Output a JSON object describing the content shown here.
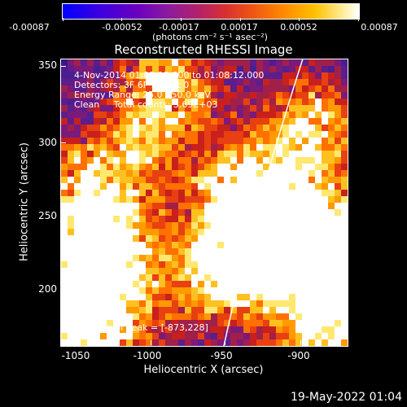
{
  "colorbar": {
    "ticks": [
      "-0.00087",
      "-0.00052",
      "-0.00017",
      "0.00017",
      "0.00052",
      "0.00087"
    ],
    "unit": "(photons cm⁻² s⁻¹ asec⁻²)"
  },
  "title": "Reconstructed RHESSI Image",
  "annotations": {
    "time": "4-Nov-2014 01:02:12.000 to 01:08:12.000",
    "detectors": "Detectors: 3F 6F 9F, Att 0",
    "energy": "Energy Range: 25.0 - 50.0 keV",
    "clean": "Clean     Total counts: 3.69E+03",
    "peak": "Position of Peak = [-873,228]"
  },
  "axes": {
    "xlabel": "Heliocentric X (arcsec)",
    "ylabel": "Heliocentric Y (arcsec)",
    "xticks": [
      "-1050",
      "-1000",
      "-950",
      "-900"
    ],
    "yticks": [
      "350",
      "300",
      "250",
      "200"
    ]
  },
  "footer": {
    "date": "19-May-2022 01:04"
  },
  "colors": {
    "background": "#000000",
    "axes": "#ffffff"
  }
}
